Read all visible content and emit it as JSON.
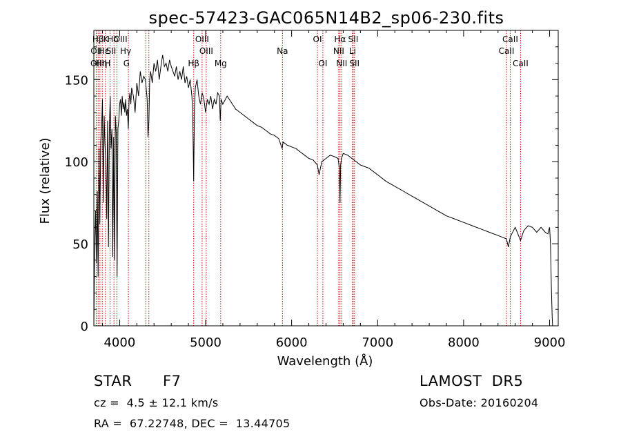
{
  "chart_data": {
    "type": "line",
    "title": "spec-57423-GAC065N14B2_sp06-230.fits",
    "xlabel": "Wavelength (Å)",
    "ylabel": "Flux (relative)",
    "xlim": [
      3700,
      9100
    ],
    "ylim": [
      0,
      180
    ],
    "xticks": [
      4000,
      5000,
      6000,
      7000,
      8000,
      9000
    ],
    "yticks": [
      0,
      50,
      100,
      150
    ],
    "grid": false,
    "series": [
      {
        "x": [
          3700,
          3710,
          3720,
          3730,
          3740,
          3750,
          3760,
          3770,
          3780,
          3790,
          3800,
          3810,
          3820,
          3830,
          3840,
          3850,
          3860,
          3870,
          3880,
          3890,
          3900,
          3910,
          3920,
          3930,
          3940,
          3950,
          3960,
          3970,
          3980,
          3990,
          4000,
          4010,
          4020,
          4030,
          4040,
          4050,
          4060,
          4070,
          4080,
          4090,
          4100,
          4110,
          4120,
          4130,
          4140,
          4160,
          4180,
          4200,
          4220,
          4240,
          4260,
          4280,
          4300,
          4320,
          4330,
          4340,
          4350,
          4360,
          4380,
          4400,
          4420,
          4440,
          4460,
          4480,
          4500,
          4520,
          4540,
          4560,
          4580,
          4600,
          4620,
          4640,
          4660,
          4680,
          4700,
          4720,
          4740,
          4760,
          4780,
          4800,
          4820,
          4840,
          4850,
          4861,
          4870,
          4880,
          4900,
          4920,
          4940,
          4960,
          4980,
          5000,
          5020,
          5040,
          5060,
          5080,
          5100,
          5120,
          5140,
          5160,
          5170,
          5180,
          5200,
          5250,
          5300,
          5350,
          5400,
          5450,
          5500,
          5550,
          5600,
          5650,
          5700,
          5750,
          5800,
          5850,
          5890,
          5900,
          5950,
          6000,
          6050,
          6100,
          6150,
          6200,
          6250,
          6300,
          6320,
          6350,
          6400,
          6450,
          6500,
          6540,
          6555,
          6563,
          6570,
          6580,
          6600,
          6650,
          6700,
          6750,
          6800,
          6900,
          7000,
          7100,
          7200,
          7300,
          7400,
          7500,
          7600,
          7700,
          7800,
          7900,
          8000,
          8100,
          8200,
          8300,
          8400,
          8498,
          8520,
          8542,
          8560,
          8600,
          8662,
          8700,
          8750,
          8800,
          8850,
          8900,
          8950,
          8980,
          9000,
          9010,
          9020,
          9030,
          9035
        ],
        "values": [
          0,
          48,
          70,
          38,
          82,
          30,
          108,
          62,
          112,
          120,
          138,
          75,
          128,
          110,
          100,
          65,
          125,
          48,
          118,
          140,
          108,
          120,
          42,
          115,
          40,
          128,
          118,
          30,
          120,
          125,
          135,
          138,
          128,
          140,
          132,
          136,
          130,
          138,
          128,
          132,
          120,
          138,
          142,
          135,
          145,
          140,
          130,
          148,
          140,
          155,
          148,
          152,
          150,
          138,
          115,
          125,
          150,
          155,
          148,
          160,
          155,
          162,
          150,
          158,
          165,
          158,
          160,
          155,
          162,
          158,
          155,
          152,
          158,
          150,
          155,
          150,
          158,
          148,
          152,
          145,
          150,
          140,
          130,
          88,
          132,
          145,
          150,
          140,
          135,
          142,
          138,
          130,
          138,
          135,
          140,
          132,
          138,
          135,
          142,
          140,
          125,
          138,
          135,
          140,
          136,
          132,
          130,
          128,
          126,
          124,
          122,
          121,
          119,
          117,
          116,
          114,
          108,
          112,
          110,
          109,
          108,
          106,
          104,
          102,
          101,
          98,
          92,
          100,
          102,
          104,
          103,
          102,
          96,
          75,
          98,
          102,
          105,
          104,
          102,
          100,
          98,
          96,
          92,
          88,
          85,
          82,
          79,
          76,
          73,
          70,
          67,
          65,
          63,
          61,
          59,
          57,
          55,
          53,
          48,
          54,
          56,
          60,
          52,
          58,
          61,
          60,
          57,
          60,
          57,
          56,
          60,
          50,
          25,
          5,
          0
        ]
      }
    ],
    "annotations": [
      {
        "label": "Hβ",
        "x": 3750
      },
      {
        "label": "K",
        "x": 3840
      },
      {
        "label": "Hδ",
        "x": 3920
      },
      {
        "label": "OIII",
        "x": 4010
      },
      {
        "label": "OII",
        "x": 3728
      },
      {
        "label": "Hε",
        "x": 3815
      },
      {
        "label": "SII",
        "x": 3900
      },
      {
        "label": "Hγ",
        "x": 4070
      },
      {
        "label": "OIII",
        "x": 3740
      },
      {
        "label": "Hη",
        "x": 3790
      },
      {
        "label": "H",
        "x": 3860
      },
      {
        "label": "G",
        "x": 4080
      },
      {
        "label": "OIII",
        "x": 4959
      },
      {
        "label": "OIII",
        "x": 5007
      },
      {
        "label": "Hβ",
        "x": 4861
      },
      {
        "label": "Mg",
        "x": 5175
      },
      {
        "label": "Na",
        "x": 5893
      },
      {
        "label": "OI",
        "x": 6300
      },
      {
        "label": "OI",
        "x": 6363
      },
      {
        "label": "Hα",
        "x": 6563
      },
      {
        "label": "SII",
        "x": 6716
      },
      {
        "label": "NII",
        "x": 6548
      },
      {
        "label": "Li",
        "x": 6708
      },
      {
        "label": "NII",
        "x": 6583
      },
      {
        "label": "SII",
        "x": 6731
      },
      {
        "label": "CaII",
        "x": 8542
      },
      {
        "label": "CaII",
        "x": 8498
      },
      {
        "label": "CaII",
        "x": 8662
      }
    ],
    "line_positions": [
      3728,
      3750,
      3771,
      3798,
      3835,
      3889,
      3934,
      3968,
      4102,
      4304,
      4340,
      4861,
      4959,
      5007,
      5175,
      5893,
      6300,
      6363,
      6548,
      6563,
      6583,
      6708,
      6716,
      6731,
      8498,
      8542,
      8662
    ]
  },
  "info": {
    "object_class": "STAR",
    "subclass": "F7",
    "redshift": "cz =  4.5 ± 12.1 km/s",
    "coords": "RA =  67.22748, DEC =  13.44705",
    "survey": "LAMOST  DR5",
    "obs_date": "Obs-Date: 20160204"
  },
  "colors": {
    "axis": "#000000",
    "spectrum": "#000000",
    "line_markers": "#cc0000"
  }
}
